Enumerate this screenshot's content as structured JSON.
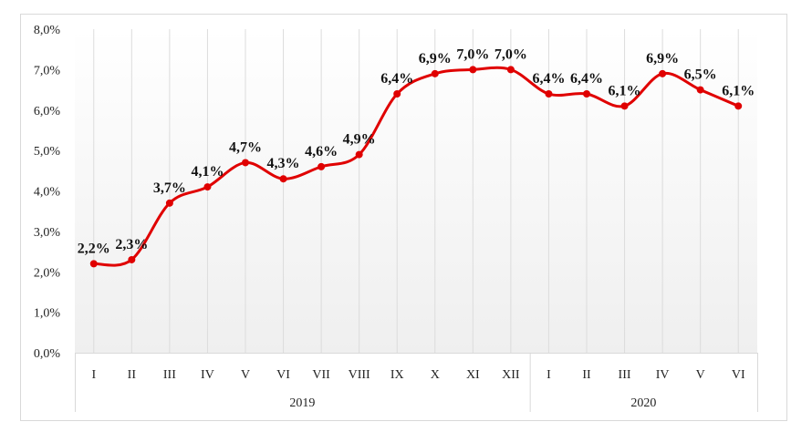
{
  "chart_data": {
    "type": "line",
    "title": "",
    "xlabel": "",
    "ylabel": "",
    "ylim": [
      0,
      8
    ],
    "y_ticks": [
      "0,0%",
      "1,0%",
      "2,0%",
      "3,0%",
      "4,0%",
      "5,0%",
      "6,0%",
      "7,0%",
      "8,0%"
    ],
    "categories": [
      "I",
      "II",
      "III",
      "IV",
      "V",
      "VI",
      "VII",
      "VIII",
      "IX",
      "X",
      "XI",
      "XII",
      "I",
      "II",
      "III",
      "IV",
      "V",
      "VI"
    ],
    "groups": [
      {
        "label": "2019",
        "count": 12
      },
      {
        "label": "2020",
        "count": 6
      }
    ],
    "series": [
      {
        "name": "",
        "color": "#e00000",
        "values": [
          2.2,
          2.3,
          3.7,
          4.1,
          4.7,
          4.3,
          4.6,
          4.9,
          6.4,
          6.9,
          7.0,
          7.0,
          6.4,
          6.4,
          6.1,
          6.9,
          6.5,
          6.1
        ],
        "labels": [
          "2,2%",
          "2,3%",
          "3,7%",
          "4,1%",
          "4,7%",
          "4,3%",
          "4,6%",
          "4,9%",
          "6,4%",
          "6,9%",
          "7,0%",
          "7,0%",
          "6,4%",
          "6,4%",
          "6,1%",
          "6,9%",
          "6,5%",
          "6,1%"
        ]
      }
    ],
    "grid": true,
    "legend": "none"
  }
}
